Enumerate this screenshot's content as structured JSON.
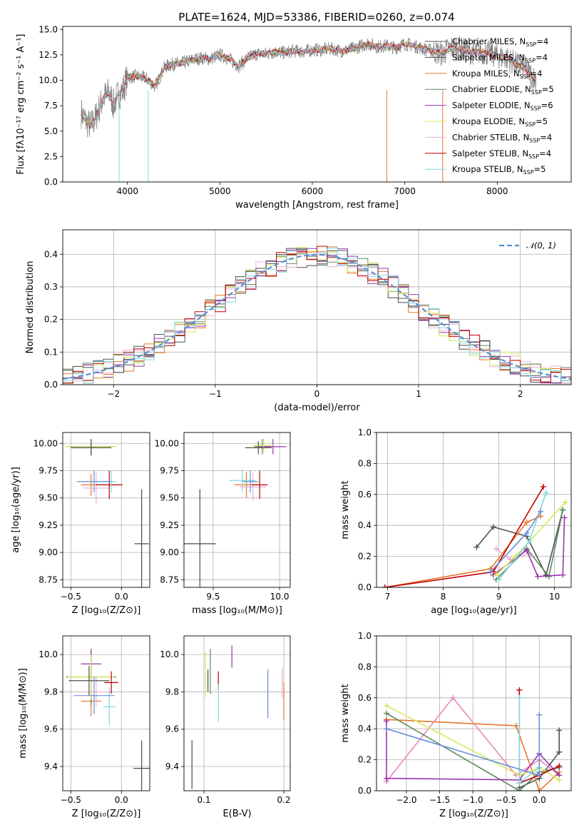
{
  "figure_title": "PLATE=1624, MJD=53386, FIBERID=0260, z=0.074",
  "colors": {
    "series": [
      "#4a4a4a",
      "#e8762b",
      "#e8b0d8",
      "#5e8a5e",
      "#9a35b0",
      "#d6e858",
      "#505050",
      "#c00000",
      "#7fd8e0",
      "#6a8fd8",
      "#e68ab8"
    ],
    "normal_curve": "#5b8fd6",
    "grid": "#b0b0b0"
  },
  "chart_data": [
    {
      "id": "spectrum",
      "type": "line",
      "title": "",
      "xlabel": "wavelength [Angstrom, rest frame]",
      "ylabel": "Flux [fλ10⁻¹⁷ erg cm⁻² s⁻¹ A⁻¹]",
      "xlim": [
        3300,
        8800
      ],
      "ylim": [
        0,
        15.3
      ],
      "xticks": [
        4000,
        5000,
        6000,
        7000,
        8000
      ],
      "yticks": [
        0.0,
        2.5,
        5.0,
        7.5,
        10.0,
        12.5,
        15.0
      ],
      "grid": false,
      "legend_position": "right",
      "continuum_x": [
        3500,
        3550,
        3600,
        3650,
        3700,
        3750,
        3800,
        3850,
        3900,
        3950,
        4000,
        4100,
        4200,
        4300,
        4400,
        4500,
        4600,
        4700,
        4800,
        4900,
        5000,
        5100,
        5200,
        5300,
        5400,
        5500,
        5600,
        5700,
        5800,
        5900,
        6000,
        6100,
        6200,
        6300,
        6400,
        6500,
        6600,
        6700,
        6800,
        6900,
        7000,
        7100,
        7200,
        7300,
        7400,
        7500,
        7600,
        7700,
        7800,
        7900,
        8000,
        8100,
        8200,
        8300,
        8400
      ],
      "continuum_y": [
        6.8,
        6.0,
        5.5,
        6.2,
        7.4,
        8.4,
        8.8,
        7.6,
        8.6,
        9.0,
        10.3,
        10.4,
        10.2,
        9.4,
        11.3,
        11.6,
        11.7,
        12.0,
        12.2,
        12.1,
        12.5,
        12.1,
        11.4,
        12.2,
        12.6,
        12.6,
        12.8,
        12.7,
        12.9,
        12.8,
        13.0,
        13.0,
        13.1,
        12.9,
        13.0,
        13.3,
        13.6,
        13.3,
        13.4,
        13.2,
        13.6,
        13.4,
        13.1,
        12.9,
        12.6,
        13.2,
        13.1,
        12.8,
        12.8,
        12.7,
        12.4,
        12.2,
        11.6,
        11.2,
        10.2
      ],
      "series": [
        {
          "name": "Chabrier MILES, N_SSP=4"
        },
        {
          "name": "Salpeter MILES, N_SSP=4"
        },
        {
          "name": "Kroupa MILES, N_SSP=4"
        },
        {
          "name": "Chabrier ELODIE, N_SSP=5"
        },
        {
          "name": "Salpeter ELODIE, N_SSP=6"
        },
        {
          "name": "Kroupa ELODIE, N_SSP=5"
        },
        {
          "name": "Chabrier STELIB, N_SSP=4"
        },
        {
          "name": "Salpeter STELIB, N_SSP=4"
        },
        {
          "name": "Kroupa STELIB, N_SSP=5"
        }
      ]
    },
    {
      "id": "residuals",
      "type": "line",
      "xlabel": "(data-model)/error",
      "ylabel": "Normed distribution",
      "xlim": [
        -2.5,
        2.5
      ],
      "ylim": [
        0,
        0.475
      ],
      "xticks": [
        -2,
        -1,
        0,
        1,
        2
      ],
      "yticks": [
        0.0,
        0.1,
        0.2,
        0.3,
        0.4
      ],
      "grid": true,
      "legend_position": "top-right",
      "legend_label": "𝒩(0, 1)",
      "normal": {
        "mean": 0,
        "sd": 1
      }
    },
    {
      "id": "age-vs-Z",
      "type": "scatter",
      "xlabel": "Z [log₁₀(Z/Z⊙)]",
      "ylabel": "age  [log₁₀(age/yr)]",
      "xlim": [
        -0.58,
        0.28
      ],
      "ylim": [
        8.68,
        10.1
      ],
      "xticks": [
        -0.5,
        0.0
      ],
      "yticks": [
        8.75,
        9.0,
        9.25,
        9.5,
        9.75,
        10.0
      ],
      "grid": true,
      "points": [
        {
          "x": 0.2,
          "y": 9.08,
          "xerr": 0.07,
          "yerr": 0.5,
          "c": 0
        },
        {
          "x": -0.3,
          "y": 9.62,
          "xerr": 0.1,
          "yerr": 0.1,
          "c": 1
        },
        {
          "x": -0.25,
          "y": 9.59,
          "xerr": 0.13,
          "yerr": 0.14,
          "c": 2
        },
        {
          "x": -0.3,
          "y": 9.97,
          "xerr": 0.22,
          "yerr": 0.07,
          "c": 3
        },
        {
          "x": -0.3,
          "y": 9.97,
          "xerr": 0.23,
          "yerr": 0.07,
          "c": 4
        },
        {
          "x": -0.3,
          "y": 9.97,
          "xerr": 0.25,
          "yerr": 0.05,
          "c": 5
        },
        {
          "x": -0.3,
          "y": 9.96,
          "xerr": 0.2,
          "yerr": 0.07,
          "c": 6
        },
        {
          "x": -0.12,
          "y": 9.62,
          "xerr": 0.13,
          "yerr": 0.13,
          "c": 7
        },
        {
          "x": -0.1,
          "y": 9.65,
          "xerr": 0.05,
          "yerr": 0.1,
          "c": 8
        },
        {
          "x": -0.27,
          "y": 9.65,
          "xerr": 0.17,
          "yerr": 0.1,
          "c": 9
        }
      ]
    },
    {
      "id": "age-vs-mass",
      "type": "scatter",
      "xlabel": "mass [log₁₀(M/M⊙)]",
      "xlim": [
        9.28,
        10.08
      ],
      "ylim": [
        8.68,
        10.1
      ],
      "xticks": [
        9.5,
        10.0
      ],
      "yticks": [
        8.75,
        9.0,
        9.25,
        9.5,
        9.75,
        10.0
      ],
      "grid": true,
      "points": [
        {
          "x": 9.4,
          "y": 9.08,
          "xerr": 0.12,
          "yerr": 0.5,
          "c": 0
        },
        {
          "x": 9.75,
          "y": 9.62,
          "xerr": 0.09,
          "yerr": 0.12,
          "c": 1
        },
        {
          "x": 9.8,
          "y": 9.6,
          "xerr": 0.1,
          "yerr": 0.13,
          "c": 2
        },
        {
          "x": 9.87,
          "y": 9.97,
          "xerr": 0.06,
          "yerr": 0.07,
          "c": 3
        },
        {
          "x": 9.95,
          "y": 9.97,
          "xerr": 0.1,
          "yerr": 0.07,
          "c": 4
        },
        {
          "x": 9.88,
          "y": 9.98,
          "xerr": 0.08,
          "yerr": 0.06,
          "c": 5
        },
        {
          "x": 9.84,
          "y": 9.96,
          "xerr": 0.1,
          "yerr": 0.06,
          "c": 6
        },
        {
          "x": 9.85,
          "y": 9.62,
          "xerr": 0.06,
          "yerr": 0.13,
          "c": 7
        },
        {
          "x": 9.72,
          "y": 9.66,
          "xerr": 0.1,
          "yerr": 0.1,
          "c": 8
        },
        {
          "x": 9.78,
          "y": 9.65,
          "xerr": 0.06,
          "yerr": 0.1,
          "c": 9
        }
      ]
    },
    {
      "id": "weight-vs-age",
      "type": "line",
      "xlabel": "age  [log₁₀(age/yr)]",
      "ylabel": "mass weight",
      "xlim": [
        6.8,
        10.3
      ],
      "ylim": [
        0.0,
        1.0
      ],
      "xticks": [
        7,
        8,
        9,
        10
      ],
      "yticks": [
        0.0,
        0.2,
        0.4,
        0.6,
        0.8,
        1.0
      ],
      "grid": true,
      "series": [
        {
          "c": 6,
          "x": [
            8.6,
            8.9,
            9.5,
            9.85,
            10.15
          ],
          "y": [
            0.26,
            0.39,
            0.33,
            0.08,
            0.5
          ]
        },
        {
          "c": 1,
          "x": [
            6.95,
            8.85,
            9.5,
            9.75
          ],
          "y": [
            0.0,
            0.12,
            0.42,
            0.46
          ]
        },
        {
          "c": 2,
          "x": [
            8.95,
            9.2,
            9.55
          ],
          "y": [
            0.25,
            0.18,
            0.22
          ]
        },
        {
          "c": 3,
          "x": [
            8.95,
            9.5,
            9.9,
            10.15
          ],
          "y": [
            0.05,
            0.25,
            0.07,
            0.5
          ]
        },
        {
          "c": 4,
          "x": [
            8.9,
            9.5,
            9.7,
            10.15,
            10.18
          ],
          "y": [
            0.08,
            0.24,
            0.07,
            0.08,
            0.45
          ]
        },
        {
          "c": 5,
          "x": [
            8.95,
            9.3,
            10.2
          ],
          "y": [
            0.08,
            0.2,
            0.55
          ]
        },
        {
          "c": 7,
          "x": [
            6.95,
            8.9,
            9.8
          ],
          "y": [
            0.0,
            0.1,
            0.65
          ]
        },
        {
          "c": 8,
          "x": [
            9.0,
            9.55,
            9.85
          ],
          "y": [
            0.05,
            0.3,
            0.61
          ]
        },
        {
          "c": 9,
          "x": [
            8.85,
            9.5,
            9.75
          ],
          "y": [
            0.1,
            0.35,
            0.49
          ]
        }
      ]
    },
    {
      "id": "mass-vs-Z",
      "type": "scatter",
      "xlabel": "Z [log₁₀(Z/Z⊙)]",
      "ylabel": "mass [log₁₀(M/M⊙)]",
      "xlim": [
        -0.58,
        0.28
      ],
      "ylim": [
        9.27,
        10.1
      ],
      "xticks": [
        -0.5,
        0.0
      ],
      "yticks": [
        9.4,
        9.6,
        9.8,
        10.0
      ],
      "grid": true,
      "points": [
        {
          "x": 0.2,
          "y": 9.39,
          "xerr": 0.08,
          "yerr": 0.15,
          "c": 0
        },
        {
          "x": -0.3,
          "y": 9.75,
          "xerr": 0.1,
          "yerr": 0.08,
          "c": 1
        },
        {
          "x": -0.25,
          "y": 9.8,
          "xerr": 0.12,
          "yerr": 0.08,
          "c": 2
        },
        {
          "x": -0.3,
          "y": 9.88,
          "xerr": 0.25,
          "yerr": 0.15,
          "c": 3
        },
        {
          "x": -0.3,
          "y": 9.95,
          "xerr": 0.1,
          "yerr": 0.08,
          "c": 4
        },
        {
          "x": -0.3,
          "y": 9.88,
          "xerr": 0.23,
          "yerr": 0.12,
          "c": 5
        },
        {
          "x": -0.32,
          "y": 9.86,
          "xerr": 0.2,
          "yerr": 0.08,
          "c": 6
        },
        {
          "x": -0.1,
          "y": 9.85,
          "xerr": 0.07,
          "yerr": 0.06,
          "c": 7
        },
        {
          "x": -0.12,
          "y": 9.72,
          "xerr": 0.06,
          "yerr": 0.1,
          "c": 8
        },
        {
          "x": -0.27,
          "y": 9.78,
          "xerr": 0.2,
          "yerr": 0.1,
          "c": 9
        }
      ]
    },
    {
      "id": "mass-vs-ebv",
      "type": "scatter",
      "xlabel": "E(B-V)",
      "xlim": [
        0.075,
        0.208
      ],
      "ylim": [
        9.27,
        10.1
      ],
      "xticks": [
        0.1,
        0.2
      ],
      "yticks": [
        9.4,
        9.6,
        9.8,
        10.0
      ],
      "grid": true,
      "points": [
        {
          "x": 0.085,
          "y": 9.41,
          "yerr": 0.13,
          "c": 0
        },
        {
          "x": 0.2,
          "y": 9.75,
          "yerr": 0.1,
          "c": 1
        },
        {
          "x": 0.198,
          "y": 9.85,
          "yerr": 0.08,
          "c": 2
        },
        {
          "x": 0.108,
          "y": 9.91,
          "yerr": 0.12,
          "c": 3
        },
        {
          "x": 0.135,
          "y": 9.99,
          "yerr": 0.06,
          "c": 4
        },
        {
          "x": 0.102,
          "y": 9.89,
          "yerr": 0.12,
          "c": 5
        },
        {
          "x": 0.105,
          "y": 9.86,
          "yerr": 0.06,
          "c": 6
        },
        {
          "x": 0.118,
          "y": 9.86,
          "yerr": 0.05,
          "c": 7
        },
        {
          "x": 0.118,
          "y": 9.74,
          "yerr": 0.1,
          "c": 8
        },
        {
          "x": 0.18,
          "y": 9.79,
          "yerr": 0.13,
          "c": 9
        }
      ]
    },
    {
      "id": "weight-vs-Z",
      "type": "line",
      "xlabel": "Z [log₁₀(Z/Z⊙)]",
      "ylabel": "mass weight",
      "xlim": [
        -2.45,
        0.48
      ],
      "ylim": [
        0.0,
        1.0
      ],
      "xticks": [
        -2.0,
        -1.5,
        -1.0,
        -0.5,
        0.0
      ],
      "yticks": [
        0.0,
        0.2,
        0.4,
        0.6,
        0.8,
        1.0
      ],
      "grid": true,
      "series": [
        {
          "c": 6,
          "x": [
            -0.3,
            0.0,
            0.3,
            0.3
          ],
          "y": [
            0.02,
            0.08,
            0.25,
            0.39
          ]
        },
        {
          "c": 1,
          "x": [
            -2.3,
            -0.35,
            0.0,
            0.3
          ],
          "y": [
            0.46,
            0.42,
            0.0,
            0.12
          ]
        },
        {
          "c": 10,
          "x": [
            -2.3,
            -1.3,
            -0.35,
            0.0,
            0.3
          ],
          "y": [
            0.06,
            0.6,
            0.1,
            0.2,
            0.1
          ]
        },
        {
          "c": 3,
          "x": [
            -2.3,
            -0.3,
            0.0,
            0.3
          ],
          "y": [
            0.5,
            0.0,
            0.12,
            0.15
          ]
        },
        {
          "c": 4,
          "x": [
            -2.3,
            -2.3,
            -0.3,
            0.0,
            0.3
          ],
          "y": [
            0.45,
            0.08,
            0.07,
            0.24,
            0.1
          ]
        },
        {
          "c": 5,
          "x": [
            -2.3,
            -0.3,
            0.0,
            0.3
          ],
          "y": [
            0.55,
            0.1,
            0.15,
            0.07
          ]
        },
        {
          "c": 7,
          "x": [
            -0.3,
            -0.3,
            0.0,
            0.3
          ],
          "y": [
            0.65,
            0.05,
            0.1,
            0.16
          ]
        },
        {
          "c": 8,
          "x": [
            -0.3,
            -0.3,
            0.0
          ],
          "y": [
            0.6,
            0.05,
            0.15
          ]
        },
        {
          "c": 9,
          "x": [
            -2.3,
            0.0,
            0.0
          ],
          "y": [
            0.4,
            0.1,
            0.49
          ]
        }
      ]
    }
  ]
}
